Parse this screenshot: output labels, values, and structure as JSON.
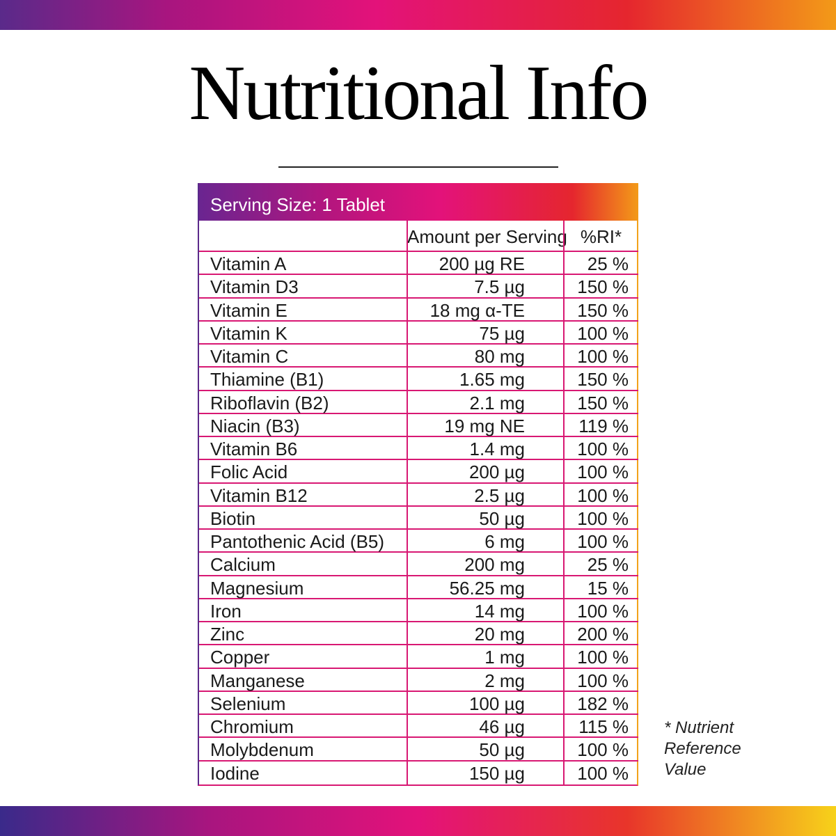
{
  "title": "Nutritional Info",
  "table": {
    "serving": "Serving Size: 1 Tablet",
    "headers": [
      "Amount per Serving",
      "%RI*"
    ],
    "rows": [
      [
        "Vitamin A",
        "200 µg RE",
        "25 %"
      ],
      [
        "Vitamin D3",
        "7.5 µg",
        "150 %"
      ],
      [
        "Vitamin E",
        "18 mg α-TE",
        "150 %"
      ],
      [
        "Vitamin K",
        "75 µg",
        "100 %"
      ],
      [
        "Vitamin C",
        "80 mg",
        "100 %"
      ],
      [
        "Thiamine (B1)",
        "1.65 mg",
        "150 %"
      ],
      [
        "Riboflavin (B2)",
        "2.1 mg",
        "150 %"
      ],
      [
        "Niacin (B3)",
        "19 mg NE",
        "119 %"
      ],
      [
        "Vitamin B6",
        "1.4 mg",
        "100 %"
      ],
      [
        "Folic Acid",
        "200 µg",
        "100 %"
      ],
      [
        "Vitamin B12",
        "2.5 µg",
        "100 %"
      ],
      [
        "Biotin",
        "50 µg",
        "100 %"
      ],
      [
        "Pantothenic Acid (B5)",
        "6 mg",
        "100 %"
      ],
      [
        "Calcium",
        "200 mg",
        "25 %"
      ],
      [
        "Magnesium",
        "56.25 mg",
        "15 %"
      ],
      [
        "Iron",
        "14 mg",
        "100 %"
      ],
      [
        "Zinc",
        "20 mg",
        "200 %"
      ],
      [
        "Copper",
        "1 mg",
        "100 %"
      ],
      [
        "Manganese",
        "2 mg",
        "100 %"
      ],
      [
        "Selenium",
        "100 µg",
        "182 %"
      ],
      [
        "Chromium",
        "46 µg",
        "115 %"
      ],
      [
        "Molybdenum",
        "50 µg",
        "100 %"
      ],
      [
        "Iodine",
        "150 µg",
        "100 %"
      ]
    ]
  },
  "footnote": [
    "* Nutrient",
    "Reference",
    "Value"
  ]
}
